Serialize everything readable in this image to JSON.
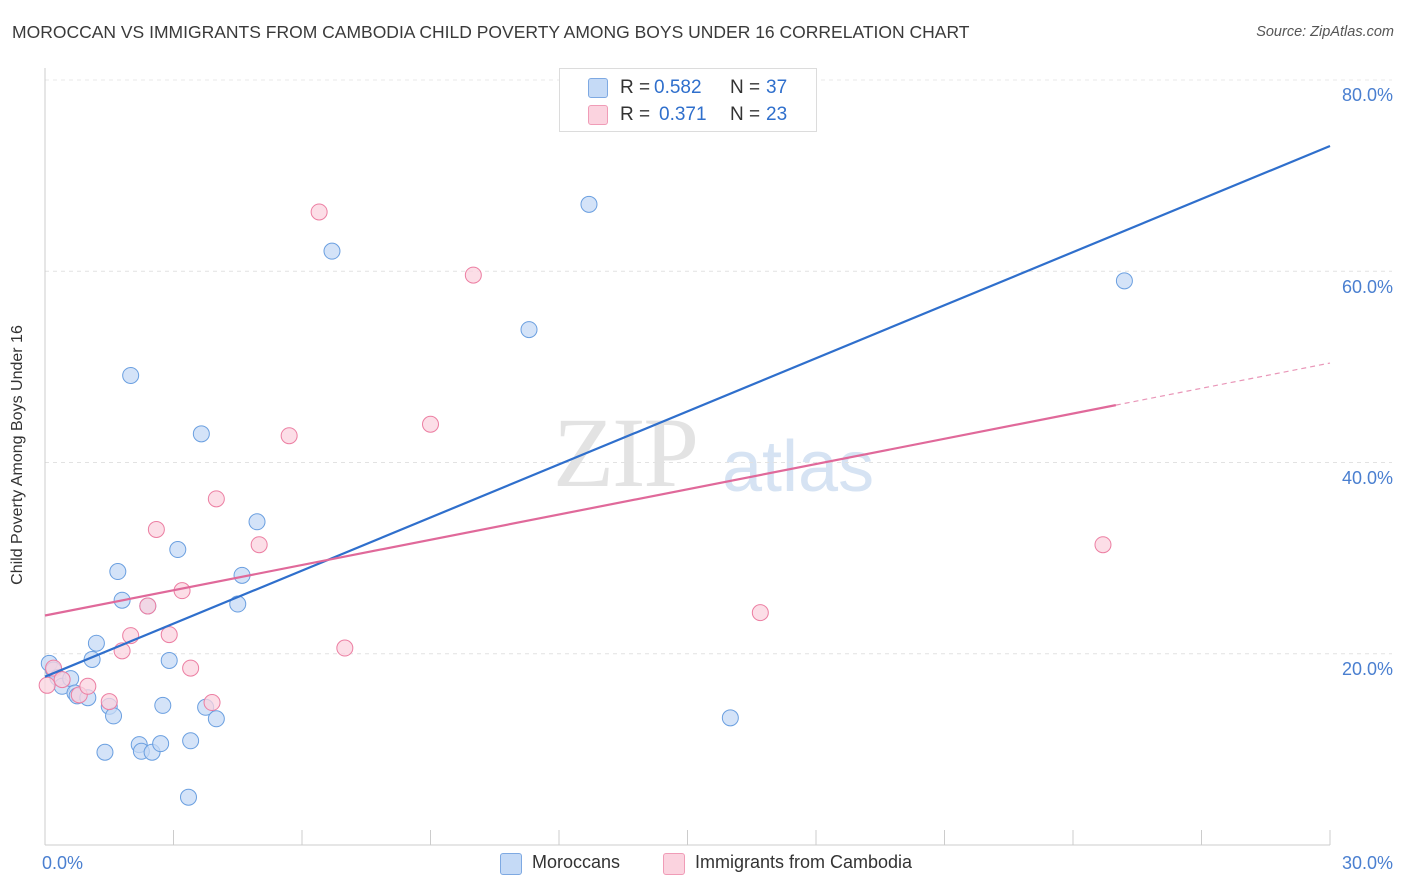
{
  "header": {
    "title": "MOROCCAN VS IMMIGRANTS FROM CAMBODIA CHILD POVERTY AMONG BOYS UNDER 16 CORRELATION CHART",
    "source": "Source: ZipAtlas.com"
  },
  "watermark": {
    "zip": "ZIP",
    "atlas": "atlas"
  },
  "legend": {
    "moroccans": {
      "r_label": "R =",
      "r_value": "0.582",
      "n_label": "N =",
      "n_value": "37",
      "color": "#a9c8f0"
    },
    "cambodia": {
      "r_label": "R =",
      "r_value": "0.371",
      "n_label": "N =",
      "n_value": "23",
      "color": "#f7b8cb"
    }
  },
  "bottom_legend": {
    "moroccans": "Moroccans",
    "cambodia": "Immigrants from Cambodia"
  },
  "chart_data": {
    "type": "scatter",
    "title": "MOROCCAN VS IMMIGRANTS FROM CAMBODIA CHILD POVERTY AMONG BOYS UNDER 16 CORRELATION CHART",
    "xlabel": "",
    "ylabel": "Child Poverty Among Boys Under 16",
    "xlim": [
      0,
      30
    ],
    "ylim": [
      0,
      80
    ],
    "x_tick_labels": [
      "0.0%",
      "30.0%"
    ],
    "y_tick_labels": [
      "20.0%",
      "40.0%",
      "60.0%",
      "80.0%"
    ],
    "y_ticks": [
      20,
      40,
      60,
      80
    ],
    "grid": true,
    "legend_position": "top-center",
    "series": [
      {
        "name": "Moroccans",
        "color": "#6a9fe0",
        "fill": "#c5daf6",
        "trend": {
          "x": [
            0,
            30
          ],
          "y": [
            17.6,
            73.1
          ]
        },
        "points": [
          [
            0.1,
            19.0
          ],
          [
            0.2,
            18.3
          ],
          [
            0.3,
            17.5
          ],
          [
            0.4,
            16.6
          ],
          [
            0.6,
            17.4
          ],
          [
            0.7,
            15.9
          ],
          [
            0.75,
            15.6
          ],
          [
            1.0,
            15.4
          ],
          [
            1.1,
            19.4
          ],
          [
            1.2,
            21.1
          ],
          [
            1.4,
            9.7
          ],
          [
            1.5,
            14.5
          ],
          [
            1.6,
            13.5
          ],
          [
            1.7,
            28.6
          ],
          [
            1.8,
            25.6
          ],
          [
            2.0,
            49.1
          ],
          [
            2.2,
            10.5
          ],
          [
            2.25,
            9.8
          ],
          [
            2.4,
            25.0
          ],
          [
            2.5,
            9.7
          ],
          [
            2.7,
            10.6
          ],
          [
            2.75,
            14.6
          ],
          [
            2.9,
            19.3
          ],
          [
            3.1,
            30.9
          ],
          [
            3.35,
            5.0
          ],
          [
            3.4,
            10.9
          ],
          [
            3.65,
            43.0
          ],
          [
            3.75,
            14.4
          ],
          [
            4.0,
            13.2
          ],
          [
            4.5,
            25.2
          ],
          [
            4.6,
            28.2
          ],
          [
            4.95,
            33.8
          ],
          [
            6.7,
            62.1
          ],
          [
            11.3,
            53.9
          ],
          [
            12.7,
            67.0
          ],
          [
            16.0,
            13.3
          ],
          [
            25.2,
            59.0
          ]
        ]
      },
      {
        "name": "Immigrants from Cambodia",
        "color": "#ec7ea2",
        "fill": "#fbd3df",
        "trend": {
          "x": [
            0,
            25.0
          ],
          "y": [
            24.0,
            46.0
          ]
        },
        "trend_dashed": {
          "x": [
            25.0,
            30
          ],
          "y": [
            46.0,
            50.4
          ]
        },
        "points": [
          [
            0.05,
            16.7
          ],
          [
            0.2,
            18.5
          ],
          [
            0.4,
            17.3
          ],
          [
            0.8,
            15.7
          ],
          [
            1.0,
            16.6
          ],
          [
            1.5,
            15.0
          ],
          [
            1.8,
            20.3
          ],
          [
            2.0,
            21.9
          ],
          [
            2.4,
            25.0
          ],
          [
            2.6,
            33.0
          ],
          [
            2.9,
            22.0
          ],
          [
            3.2,
            26.6
          ],
          [
            3.4,
            18.5
          ],
          [
            3.9,
            14.9
          ],
          [
            4.0,
            36.2
          ],
          [
            5.0,
            31.4
          ],
          [
            5.7,
            42.8
          ],
          [
            7.0,
            20.6
          ],
          [
            6.4,
            66.2
          ],
          [
            9.0,
            44.0
          ],
          [
            10.0,
            59.6
          ],
          [
            16.7,
            24.3
          ],
          [
            24.7,
            31.4
          ]
        ]
      }
    ]
  }
}
